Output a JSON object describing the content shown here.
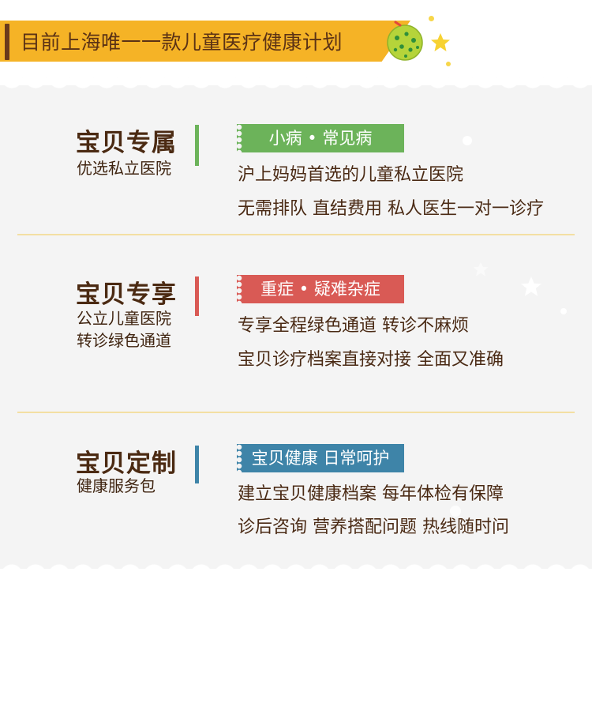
{
  "header": {
    "title": "目前上海唯一一款儿童医疗健康计划"
  },
  "colors": {
    "banner": "#f5b326",
    "green": "#6cb35a",
    "red": "#d95a55",
    "blue": "#3e84a8",
    "brown": "#4b2a12",
    "divider": "#f3dfa3"
  },
  "plans": [
    {
      "title": "宝贝专属",
      "subtitle": [
        "优选私立医院"
      ],
      "tag": "小病 • 常见病",
      "lines": [
        "沪上妈妈首选的儿童私立医院",
        "无需排队 直结费用 私人医生一对一诊疗"
      ]
    },
    {
      "title": "宝贝专享",
      "subtitle": [
        "公立儿童医院",
        "转诊绿色通道"
      ],
      "tag": "重症 • 疑难杂症",
      "lines": [
        "专享全程绿色通道 转诊不麻烦",
        "宝贝诊疗档案直接对接 全面又准确"
      ]
    },
    {
      "title": "宝贝定制",
      "subtitle": [
        "健康服务包"
      ],
      "tag": "宝贝健康 日常呵护",
      "lines": [
        "建立宝贝健康档案 每年体检有保障",
        "诊后咨询 营养搭配问题 热线随时问"
      ]
    }
  ]
}
